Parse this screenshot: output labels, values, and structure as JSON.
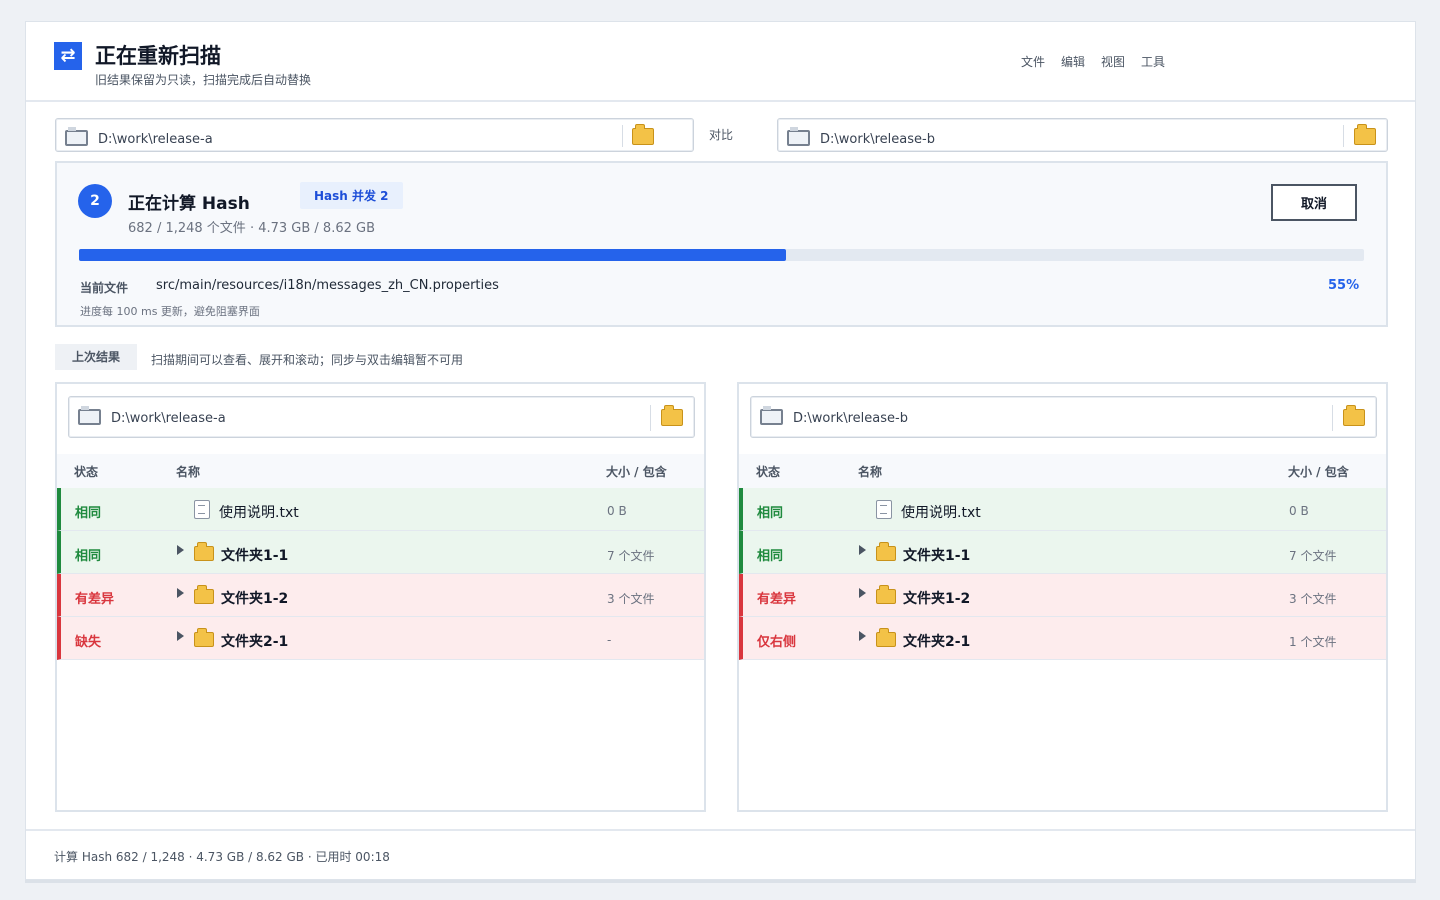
{
  "header": {
    "title": "正在重新扫描",
    "subtitle": "旧结果保留为只读，扫描完成后自动替换",
    "menu": [
      "文件",
      "编辑",
      "视图",
      "工具"
    ]
  },
  "compare": {
    "left_path": "D:\\work\\release-a",
    "right_path": "D:\\work\\release-b",
    "vs_label": "对比"
  },
  "scan": {
    "step_number": "2",
    "step_title": "正在计算 Hash",
    "badge": "Hash 并发 2",
    "stats": "682 / 1,248 个文件 · 4.73 GB / 8.62 GB",
    "cancel_label": "取消",
    "progress": 0.55,
    "current_file_label": "当前文件",
    "current_file": "src/main/resources/i18n/messages_zh_CN.properties",
    "percent_text": "55%",
    "note": "进度每 100 ms 更新，避免阻塞界面"
  },
  "previous": {
    "tag": "上次结果",
    "description": "扫描期间可以查看、展开和滚动；同步与双击编辑暂不可用"
  },
  "columns": {
    "status": "状态",
    "name": "名称",
    "size": "大小 / 包含"
  },
  "left_pane": {
    "path": "D:\\work\\release-a",
    "rows": [
      {
        "status": "相同",
        "kind": "same",
        "type": "file",
        "name": "使用说明.txt",
        "size": "0 B"
      },
      {
        "status": "相同",
        "kind": "same",
        "type": "folder",
        "name": "文件夹1-1",
        "size": "7 个文件"
      },
      {
        "status": "有差异",
        "kind": "diff",
        "type": "folder",
        "name": "文件夹1-2",
        "size": "3 个文件"
      },
      {
        "status": "缺失",
        "kind": "diff",
        "type": "folder",
        "name": "文件夹2-1",
        "size": "-"
      }
    ]
  },
  "right_pane": {
    "path": "D:\\work\\release-b",
    "rows": [
      {
        "status": "相同",
        "kind": "same",
        "type": "file",
        "name": "使用说明.txt",
        "size": "0 B"
      },
      {
        "status": "相同",
        "kind": "same",
        "type": "folder",
        "name": "文件夹1-1",
        "size": "7 个文件"
      },
      {
        "status": "有差异",
        "kind": "diff",
        "type": "folder",
        "name": "文件夹1-2",
        "size": "3 个文件"
      },
      {
        "status": "仅右侧",
        "kind": "diff",
        "type": "folder",
        "name": "文件夹2-1",
        "size": "1 个文件"
      }
    ]
  },
  "footer": {
    "text": "计算 Hash   682 / 1,248  · 4.73 GB / 8.62 GB  · 已用时 00:18"
  },
  "colors": {
    "accent": "#2563eb",
    "same": "#1f8a3e",
    "diff": "#d9363e",
    "folder": "#f3c247"
  }
}
